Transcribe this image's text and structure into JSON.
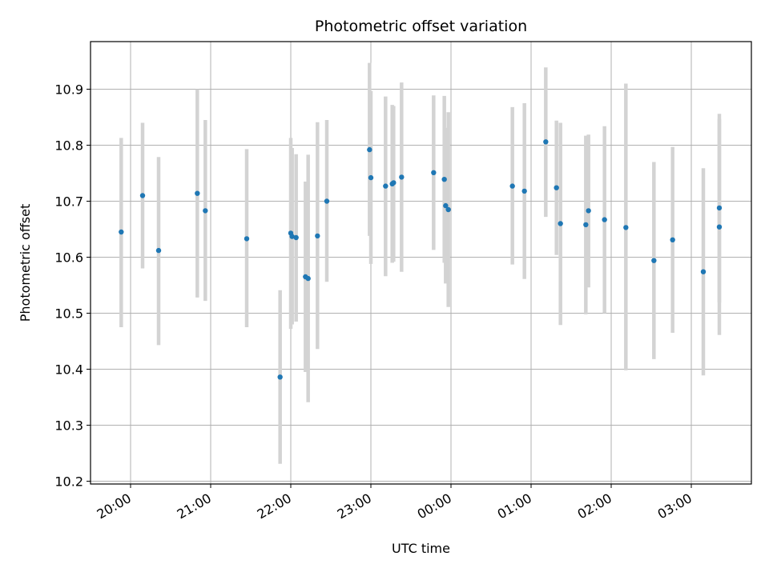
{
  "chart_data": {
    "type": "scatter",
    "title": "Photometric offset variation",
    "xlabel": "UTC time",
    "ylabel": "Photometric offset",
    "grid": true,
    "colors": {
      "point": "#1f77b4",
      "errorbar": "#d3d3d3",
      "grid": "#b0b0b0",
      "axes": "#000000"
    },
    "x_axis": {
      "kind": "time",
      "start": "19:30",
      "end": "03:45",
      "ticks": [
        "20:00",
        "21:00",
        "22:00",
        "23:00",
        "00:00",
        "01:00",
        "02:00",
        "03:00"
      ]
    },
    "ylim": [
      10.195,
      10.985
    ],
    "yticks": [
      10.2,
      10.3,
      10.4,
      10.5,
      10.6,
      10.7,
      10.8,
      10.9
    ],
    "ytick_labels": [
      "10.2",
      "10.3",
      "10.4",
      "10.5",
      "10.6",
      "10.7",
      "10.8",
      "10.9"
    ],
    "points": [
      {
        "x": "19:53",
        "y": 10.645,
        "lo": 10.475,
        "hi": 10.813
      },
      {
        "x": "20:09",
        "y": 10.71,
        "lo": 10.58,
        "hi": 10.84
      },
      {
        "x": "20:21",
        "y": 10.612,
        "lo": 10.443,
        "hi": 10.779
      },
      {
        "x": "20:50",
        "y": 10.714,
        "lo": 10.528,
        "hi": 10.9
      },
      {
        "x": "20:56",
        "y": 10.683,
        "lo": 10.522,
        "hi": 10.845
      },
      {
        "x": "21:27",
        "y": 10.633,
        "lo": 10.475,
        "hi": 10.793
      },
      {
        "x": "21:52",
        "y": 10.386,
        "lo": 10.231,
        "hi": 10.541
      },
      {
        "x": "22:00",
        "y": 10.643,
        "lo": 10.472,
        "hi": 10.813
      },
      {
        "x": "22:01",
        "y": 10.637,
        "lo": 10.48,
        "hi": 10.795
      },
      {
        "x": "22:04",
        "y": 10.635,
        "lo": 10.485,
        "hi": 10.784
      },
      {
        "x": "22:11",
        "y": 10.565,
        "lo": 10.395,
        "hi": 10.735
      },
      {
        "x": "22:13",
        "y": 10.562,
        "lo": 10.341,
        "hi": 10.783
      },
      {
        "x": "22:20",
        "y": 10.638,
        "lo": 10.436,
        "hi": 10.841
      },
      {
        "x": "22:27",
        "y": 10.7,
        "lo": 10.556,
        "hi": 10.845
      },
      {
        "x": "22:59",
        "y": 10.792,
        "lo": 10.638,
        "hi": 10.947
      },
      {
        "x": "23:00",
        "y": 10.742,
        "lo": 10.588,
        "hi": 10.897
      },
      {
        "x": "23:11",
        "y": 10.727,
        "lo": 10.566,
        "hi": 10.887
      },
      {
        "x": "23:16",
        "y": 10.731,
        "lo": 10.59,
        "hi": 10.872
      },
      {
        "x": "23:17",
        "y": 10.733,
        "lo": 10.592,
        "hi": 10.87
      },
      {
        "x": "23:23",
        "y": 10.743,
        "lo": 10.574,
        "hi": 10.912
      },
      {
        "x": "23:47",
        "y": 10.751,
        "lo": 10.613,
        "hi": 10.889
      },
      {
        "x": "23:55",
        "y": 10.739,
        "lo": 10.59,
        "hi": 10.888
      },
      {
        "x": "23:56",
        "y": 10.692,
        "lo": 10.553,
        "hi": 10.831
      },
      {
        "x": "23:58",
        "y": 10.685,
        "lo": 10.511,
        "hi": 10.859
      },
      {
        "x": "00:46",
        "y": 10.727,
        "lo": 10.587,
        "hi": 10.868
      },
      {
        "x": "00:55",
        "y": 10.718,
        "lo": 10.561,
        "hi": 10.875
      },
      {
        "x": "01:11",
        "y": 10.806,
        "lo": 10.672,
        "hi": 10.939
      },
      {
        "x": "01:19",
        "y": 10.724,
        "lo": 10.604,
        "hi": 10.844
      },
      {
        "x": "01:22",
        "y": 10.66,
        "lo": 10.479,
        "hi": 10.84
      },
      {
        "x": "01:41",
        "y": 10.658,
        "lo": 10.498,
        "hi": 10.817
      },
      {
        "x": "01:43",
        "y": 10.683,
        "lo": 10.546,
        "hi": 10.819
      },
      {
        "x": "01:55",
        "y": 10.667,
        "lo": 10.5,
        "hi": 10.834
      },
      {
        "x": "02:11",
        "y": 10.653,
        "lo": 10.398,
        "hi": 10.91
      },
      {
        "x": "02:32",
        "y": 10.594,
        "lo": 10.418,
        "hi": 10.77
      },
      {
        "x": "02:46",
        "y": 10.631,
        "lo": 10.465,
        "hi": 10.797
      },
      {
        "x": "03:09",
        "y": 10.574,
        "lo": 10.389,
        "hi": 10.759
      },
      {
        "x": "03:21",
        "y": 10.688,
        "lo": 10.519,
        "hi": 10.856
      },
      {
        "x": "03:21",
        "y": 10.654,
        "lo": 10.461,
        "hi": 10.847
      }
    ]
  }
}
